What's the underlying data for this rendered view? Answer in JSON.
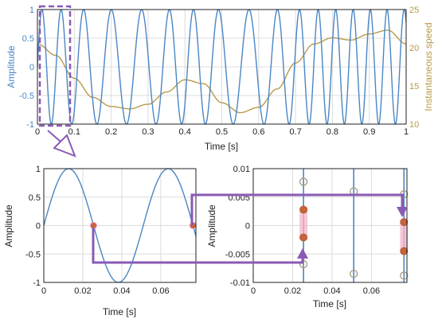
{
  "chart_data": [
    {
      "type": "line",
      "xlabel": "Time [s]",
      "ylabel_left": "Amplitude",
      "ylabel_right": "Instantaneous speed",
      "xlim": [
        0,
        1
      ],
      "ylim_left": [
        -1,
        1
      ],
      "ylim_right": [
        10,
        25
      ],
      "xticks": [
        "0",
        "0.1",
        "0.2",
        "0.3",
        "0.4",
        "0.5",
        "0.6",
        "0.7",
        "0.8",
        "0.9",
        "1"
      ],
      "yticks_left": [
        "-1",
        "-0.5",
        "0",
        "0.5",
        "1"
      ],
      "yticks_right": [
        "10",
        "15",
        "20",
        "25"
      ],
      "grid": true,
      "series": [
        {
          "axis": "left",
          "color": "#4a86c5",
          "values_description": "sinusoid of amplitude 1 with period varying as the inverse of speed",
          "x": [
            0,
            0.05,
            0.1,
            0.15,
            0.2,
            0.25,
            0.3,
            0.35,
            0.4,
            0.45,
            0.5,
            0.55,
            0.6,
            0.65,
            0.7,
            0.75,
            0.8,
            0.85,
            0.9,
            0.95,
            1.0
          ],
          "speed": [
            20.5,
            19.0,
            16.0,
            13.5,
            12.3,
            12.0,
            12.6,
            14.2,
            15.8,
            15.3,
            12.8,
            11.5,
            12.2,
            14.6,
            18.0,
            20.5,
            21.3,
            21.0,
            21.8,
            22.3,
            20.5
          ]
        },
        {
          "axis": "right",
          "color": "#b89a4a",
          "x": [
            0,
            0.05,
            0.1,
            0.15,
            0.2,
            0.25,
            0.3,
            0.35,
            0.4,
            0.45,
            0.5,
            0.55,
            0.6,
            0.65,
            0.7,
            0.75,
            0.8,
            0.85,
            0.9,
            0.95,
            1.0
          ],
          "values": [
            20.5,
            19.0,
            16.0,
            13.5,
            12.3,
            12.0,
            12.6,
            14.2,
            15.8,
            15.3,
            12.8,
            11.5,
            12.2,
            14.6,
            18.0,
            20.5,
            21.3,
            21.0,
            21.8,
            22.3,
            20.5
          ]
        }
      ]
    },
    {
      "type": "line",
      "xlabel": "Time [s]",
      "ylabel": "Amplitude",
      "xlim": [
        0,
        0.078
      ],
      "ylim": [
        -1,
        1
      ],
      "xticks": [
        "0",
        "0.02",
        "0.04",
        "0.06"
      ],
      "yticks": [
        "-1",
        "-0.5",
        "0",
        "0.5",
        "1"
      ],
      "grid": true,
      "series": [
        {
          "color": "#4a86c5",
          "period_s": 0.051,
          "phase_zero_s": 0.0
        }
      ],
      "markers": [
        {
          "x": 0.0255,
          "y": 0
        },
        {
          "x": 0.0765,
          "y": 0
        }
      ]
    },
    {
      "type": "scatter",
      "xlabel": "Time [s]",
      "ylabel": "Amplitude",
      "xlim": [
        0,
        0.078
      ],
      "ylim": [
        -0.01,
        0.01
      ],
      "xticks": [
        "0",
        "0.02",
        "0.04",
        "0.06"
      ],
      "yticks": [
        "-0.01",
        "-0.005",
        "0",
        "0.005",
        "0.01"
      ],
      "grid": true,
      "crossings_x": [
        0.0255,
        0.051,
        0.0765
      ],
      "open_markers": [
        {
          "x": 0.0255,
          "y": 0.0077
        },
        {
          "x": 0.0255,
          "y": -0.0068
        },
        {
          "x": 0.051,
          "y": 0.006
        },
        {
          "x": 0.051,
          "y": -0.0085
        },
        {
          "x": 0.0765,
          "y": 0.0055
        },
        {
          "x": 0.0765,
          "y": -0.0088
        }
      ],
      "filled_markers": [
        {
          "x": 0.0255,
          "y": 0.0028
        },
        {
          "x": 0.0255,
          "y": -0.0021
        },
        {
          "x": 0.0765,
          "y": 0.0006
        },
        {
          "x": 0.0765,
          "y": -0.0045
        }
      ]
    }
  ],
  "colors": {
    "signal": "#4a86c5",
    "speed": "#b89a4a",
    "highlight": "#8a5ab5",
    "filled_marker": "#c8643a",
    "open_marker": "#a89a7a"
  }
}
